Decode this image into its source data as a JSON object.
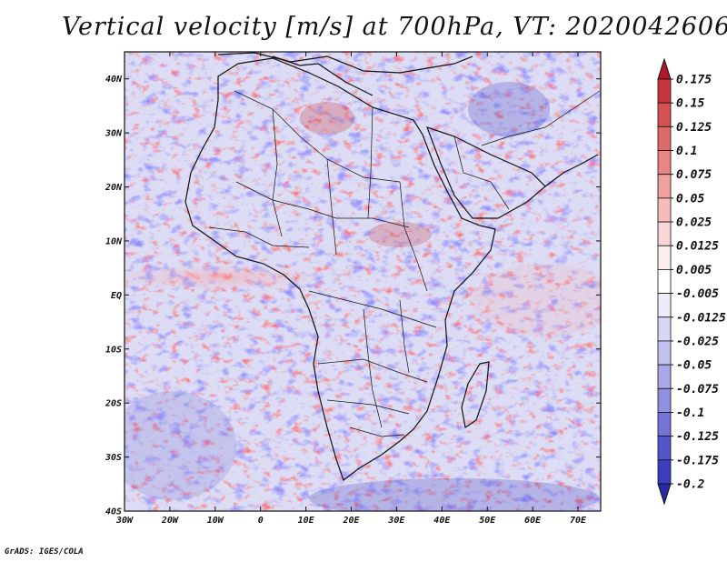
{
  "title": "Vertical velocity [m/s] at 700hPa, VT: 2020042606",
  "credit": "GrADS: IGES/COLA",
  "map": {
    "lon_ticks": [
      "30W",
      "20W",
      "10W",
      "0",
      "10E",
      "20E",
      "30E",
      "40E",
      "50E",
      "60E",
      "70E"
    ],
    "lat_ticks": [
      "40N",
      "30N",
      "20N",
      "10N",
      "EQ",
      "10S",
      "20S",
      "30S",
      "40S"
    ],
    "lon_range": [
      -30,
      75
    ],
    "lat_range": [
      -40,
      45
    ]
  },
  "colorbar": {
    "labels": [
      "0.175",
      "0.15",
      "0.125",
      "0.1",
      "0.075",
      "0.05",
      "0.025",
      "0.0125",
      "0.005",
      "-0.005",
      "-0.0125",
      "-0.025",
      "-0.05",
      "-0.075",
      "-0.1",
      "-0.125",
      "-0.175",
      "-0.2"
    ],
    "colors": [
      "#b2182b",
      "#c8353d",
      "#d64f51",
      "#e06a6a",
      "#e98585",
      "#f0a0a0",
      "#f6bcbc",
      "#fad6d6",
      "#fdeeee",
      "#ffffff",
      "#ececfb",
      "#d8d8f6",
      "#c2c2f1",
      "#a9a9ea",
      "#9090e2",
      "#7474d8",
      "#5454cc",
      "#3c3cbf",
      "#2828a8"
    ]
  }
}
